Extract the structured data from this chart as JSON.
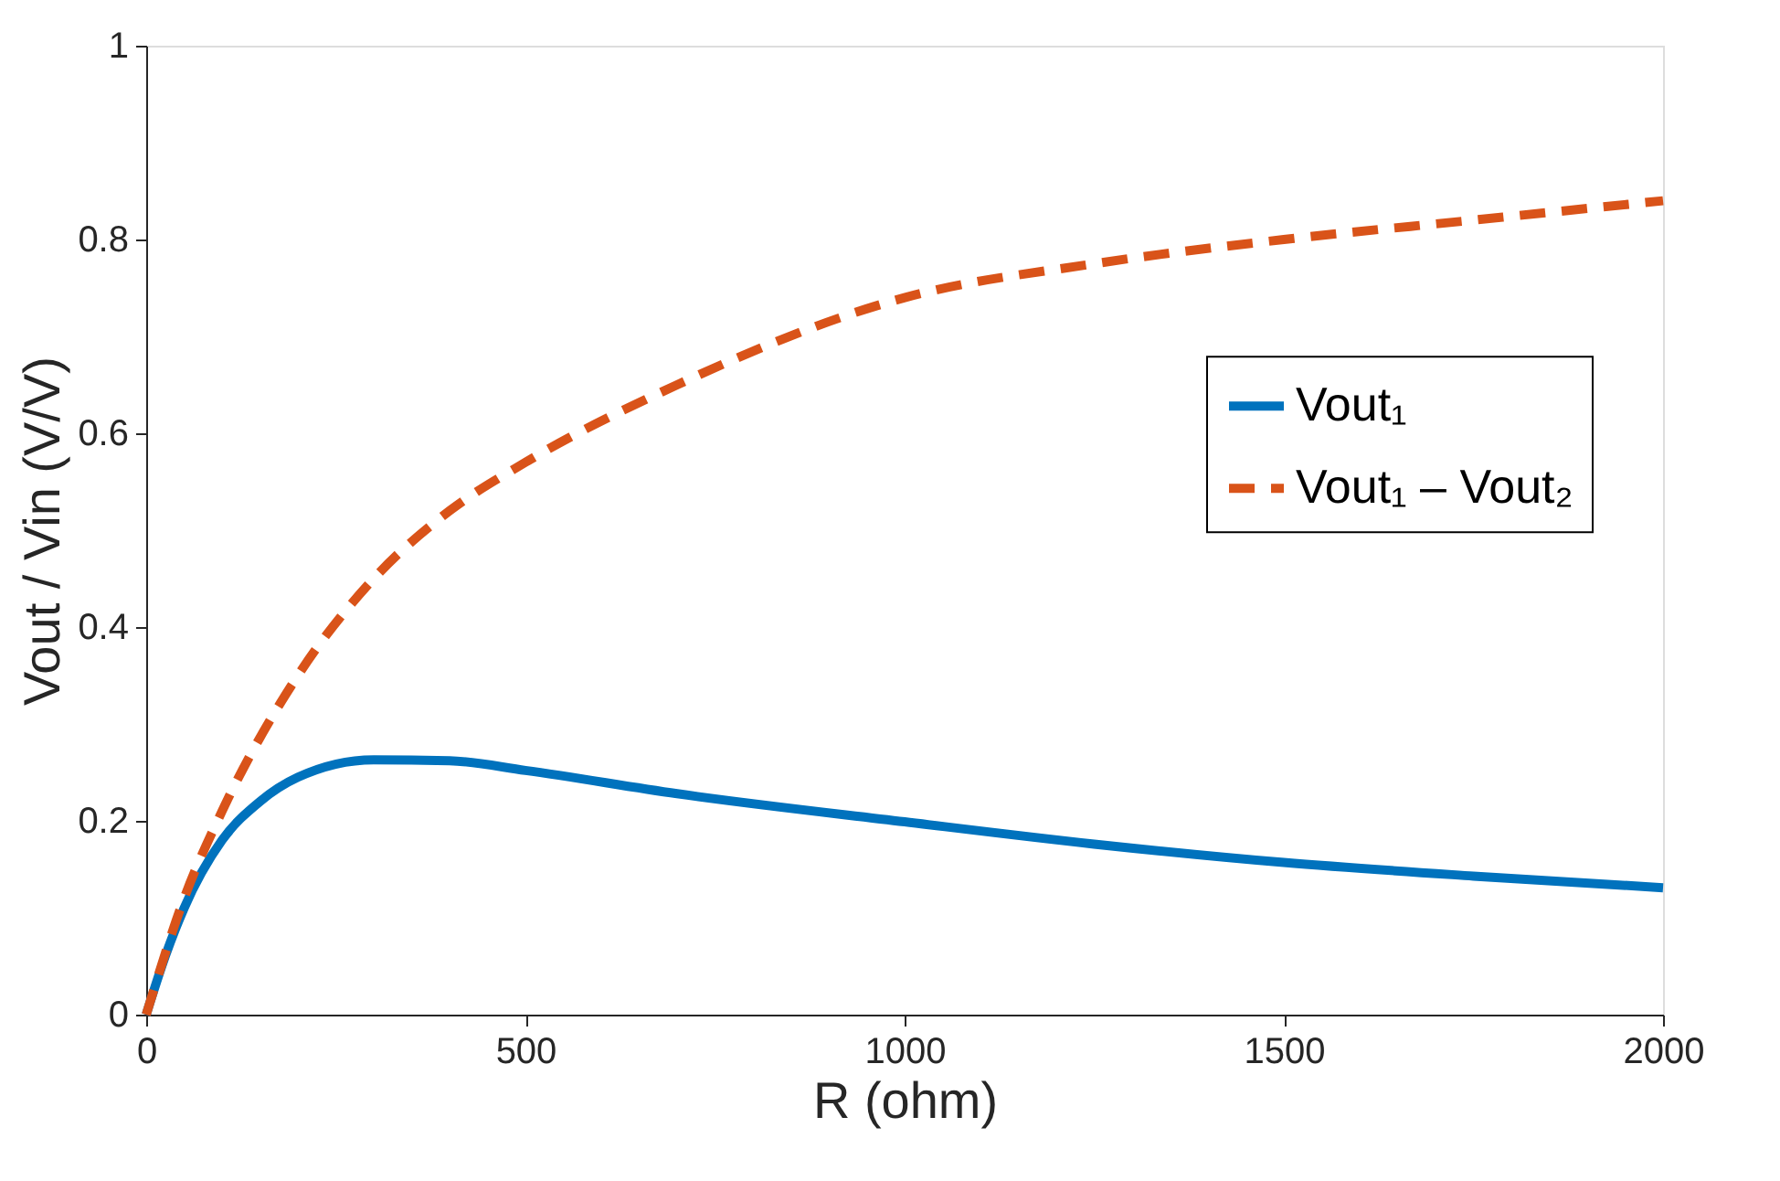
{
  "chart_data": {
    "type": "line",
    "xlabel": "R (ohm)",
    "ylabel": "Vout / Vin (V/V)",
    "xlim": [
      0,
      2000
    ],
    "xticks": [
      0,
      500,
      1000,
      1500,
      2000
    ],
    "ylim": [
      0,
      1
    ],
    "yticks": [
      0,
      0.2,
      0.4,
      0.6,
      0.8,
      1
    ],
    "grid": false,
    "legend": "right",
    "marker": "none",
    "series": [
      {
        "name": "Vout₁",
        "color": "#0072bd",
        "line_style": "solid",
        "x": [
          0,
          25,
          50,
          100,
          150,
          200,
          300,
          400,
          500,
          700,
          1000,
          1250,
          1500,
          1750,
          2000
        ],
        "values": [
          0,
          0.06,
          0.11,
          0.18,
          0.22,
          0.245,
          0.263,
          0.262,
          0.252,
          0.228,
          0.199,
          0.176,
          0.157,
          0.143,
          0.131
        ]
      },
      {
        "name": "Vout₁ – Vout₂",
        "color": "#d95319",
        "line_style": "dashed",
        "x": [
          0,
          50,
          100,
          200,
          300,
          400,
          500,
          700,
          1000,
          1250,
          1500,
          1750,
          2000
        ],
        "values": [
          0,
          0.12,
          0.21,
          0.35,
          0.45,
          0.52,
          0.57,
          0.65,
          0.74,
          0.775,
          0.8,
          0.82,
          0.84
        ]
      }
    ]
  }
}
